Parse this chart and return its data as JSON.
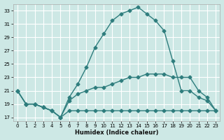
{
  "xlabel": "Humidex (Indice chaleur)",
  "bg_color": "#cde8e5",
  "grid_color": "#ffffff",
  "line_color": "#2e7d7d",
  "xlim": [
    -0.5,
    23.5
  ],
  "ylim": [
    16.5,
    34
  ],
  "xticks": [
    0,
    1,
    2,
    3,
    4,
    5,
    6,
    7,
    8,
    9,
    10,
    11,
    12,
    13,
    14,
    15,
    16,
    17,
    18,
    19,
    20,
    21,
    22,
    23
  ],
  "yticks": [
    17,
    19,
    21,
    23,
    25,
    27,
    29,
    31,
    33
  ],
  "line_top_x": [
    0,
    1,
    2,
    3,
    4,
    5,
    6,
    7,
    8,
    9,
    10,
    11,
    12,
    13,
    14,
    15,
    16,
    17,
    18,
    19,
    20,
    21,
    22,
    23
  ],
  "line_top_y": [
    21,
    19,
    19,
    18.5,
    18,
    17,
    20,
    22,
    24.5,
    27.5,
    29.5,
    31.5,
    32.5,
    33,
    33.5,
    32.5,
    31.5,
    30,
    25.5,
    21,
    21,
    20,
    19.5,
    18
  ],
  "line_mid_x": [
    0,
    1,
    2,
    3,
    4,
    5,
    6,
    7,
    8,
    9,
    10,
    11,
    12,
    13,
    14,
    15,
    16,
    17,
    18,
    19,
    20,
    21,
    22,
    23
  ],
  "line_mid_y": [
    21,
    19,
    19,
    18.5,
    18,
    17,
    19.5,
    20.5,
    21,
    21.5,
    21.5,
    22,
    22.5,
    23,
    23,
    23.5,
    23.5,
    23.5,
    23,
    23,
    23,
    21,
    20,
    18
  ],
  "line_bot_x": [
    0,
    1,
    2,
    3,
    4,
    5,
    6,
    7,
    8,
    9,
    10,
    11,
    12,
    13,
    14,
    15,
    16,
    17,
    18,
    19,
    20,
    21,
    22,
    23
  ],
  "line_bot_y": [
    21,
    19,
    19,
    18.5,
    18,
    17,
    18,
    18,
    18,
    18,
    18,
    18,
    18,
    18,
    18,
    18,
    18,
    18,
    18,
    18,
    18,
    18,
    18,
    18
  ],
  "markersize": 2.5,
  "linewidth": 1.0
}
